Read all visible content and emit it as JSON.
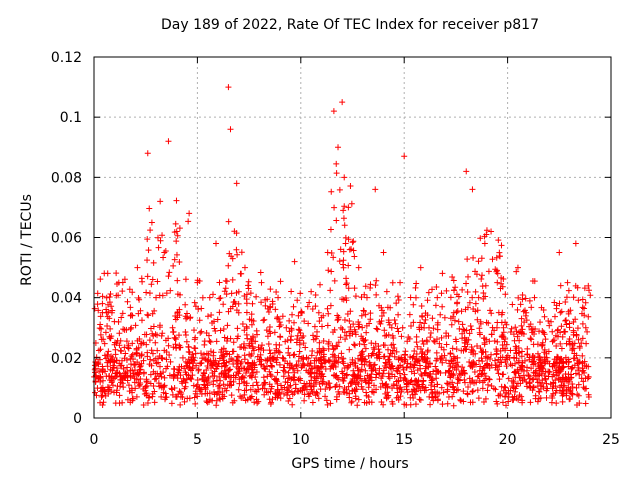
{
  "chart_data": {
    "type": "scatter",
    "title": "Day 189 of 2022, Rate Of TEC Index for receiver p817",
    "xlabel": "GPS time / hours",
    "ylabel": "ROTI / TECUs",
    "xlim": [
      0,
      25
    ],
    "ylim": [
      0,
      0.12
    ],
    "xticks": [
      "0",
      "5",
      "10",
      "15",
      "20",
      "25"
    ],
    "yticks": [
      "0",
      "0.02",
      "0.04",
      "0.06",
      "0.08",
      "0.1",
      "0.12"
    ],
    "grid": true,
    "marker": "+",
    "color": "#ff0000",
    "series": [
      {
        "x": [
          0.3,
          0.6,
          0.9,
          1.2,
          1.5,
          1.8,
          2.1,
          2.4,
          2.6,
          2.8,
          3.0,
          3.2,
          3.4,
          3.6,
          3.8,
          4.0,
          4.3,
          4.6,
          5.0,
          5.3,
          5.6,
          5.9,
          6.2,
          6.5,
          6.6,
          6.9,
          7.0,
          7.3,
          7.7,
          8.1,
          8.5,
          8.9,
          9.3,
          9.7,
          10.1,
          10.5,
          10.9,
          11.3,
          11.6,
          11.8,
          12.0,
          12.1,
          12.3,
          12.5,
          12.8,
          13.2,
          13.6,
          14.0,
          14.4,
          14.8,
          15.0,
          15.4,
          15.8,
          16.2,
          16.6,
          17.0,
          17.4,
          17.8,
          18.0,
          18.3,
          18.6,
          18.9,
          19.2,
          19.5,
          19.8,
          20.1,
          20.5,
          20.9,
          21.3,
          21.7,
          22.1,
          22.5,
          22.9,
          23.3,
          23.7
        ],
        "y": [
          0.012,
          0.035,
          0.02,
          0.045,
          0.015,
          0.03,
          0.05,
          0.025,
          0.088,
          0.065,
          0.04,
          0.072,
          0.055,
          0.092,
          0.03,
          0.062,
          0.02,
          0.068,
          0.045,
          0.015,
          0.04,
          0.058,
          0.02,
          0.11,
          0.096,
          0.078,
          0.035,
          0.05,
          0.015,
          0.045,
          0.02,
          0.04,
          0.03,
          0.052,
          0.018,
          0.042,
          0.025,
          0.055,
          0.102,
          0.09,
          0.105,
          0.08,
          0.07,
          0.028,
          0.05,
          0.04,
          0.076,
          0.055,
          0.03,
          0.045,
          0.087,
          0.02,
          0.05,
          0.03,
          0.04,
          0.015,
          0.035,
          0.028,
          0.082,
          0.076,
          0.04,
          0.058,
          0.062,
          0.045,
          0.03,
          0.02,
          0.05,
          0.035,
          0.04,
          0.025,
          0.032,
          0.055,
          0.045,
          0.058,
          0.015
        ]
      }
    ]
  }
}
